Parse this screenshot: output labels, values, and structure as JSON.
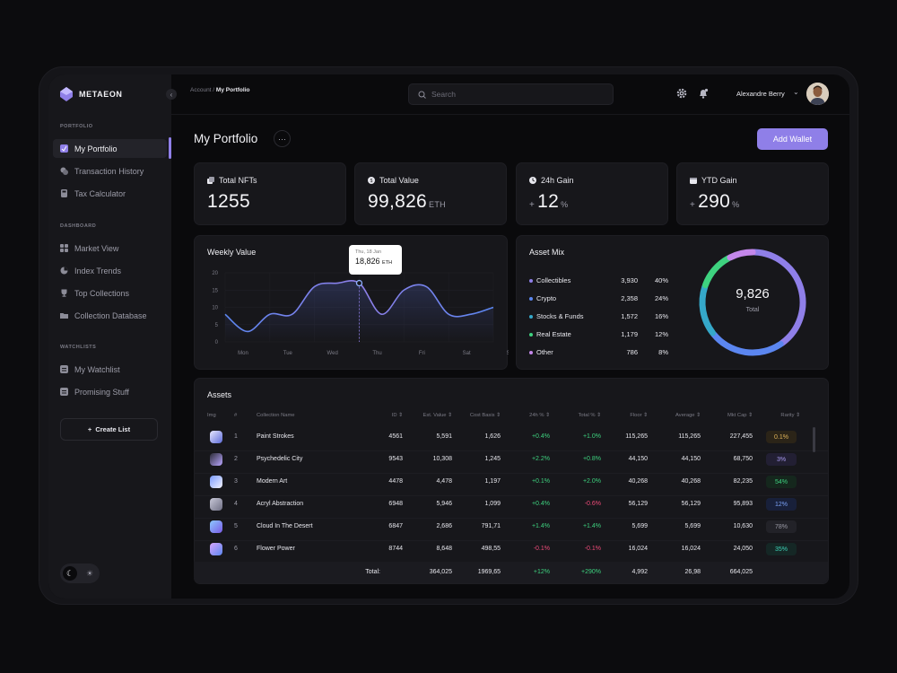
{
  "brand": {
    "name": "METAEON"
  },
  "sidebar": {
    "portfolio_label": "PORTFOLIO",
    "dashboard_label": "DASHBOARD",
    "watchlists_label": "WATCHLISTS",
    "portfolio_items": [
      "My Portfolio",
      "Transaction History",
      "Tax Calculator"
    ],
    "dashboard_items": [
      "Market View",
      "Index Trends",
      "Top Collections",
      "Collection Database"
    ],
    "watchlist_items": [
      "My Watchlist",
      "Promising Stuff"
    ],
    "create_list": "Create List"
  },
  "topbar": {
    "breadcrumb_root": "Account /",
    "breadcrumb_current": "My Portfolio",
    "search_placeholder": "Search",
    "user_name": "Alexandre Berry"
  },
  "header": {
    "title": "My Portfolio",
    "more": "···",
    "add_wallet": "Add Wallet"
  },
  "stats": [
    {
      "label": "Total NFTs",
      "prefix": "",
      "value": "1255",
      "unit": ""
    },
    {
      "label": "Total Value",
      "prefix": "",
      "value": "99,826",
      "unit": "ETH"
    },
    {
      "label": "24h Gain",
      "prefix": "+",
      "value": "12",
      "unit": "%"
    },
    {
      "label": "YTD Gain",
      "prefix": "+",
      "value": "290",
      "unit": "%"
    }
  ],
  "weekly": {
    "title": "Weekly Value",
    "tooltip_date": "Thu, 18 Jan",
    "tooltip_value": "18,826",
    "tooltip_unit": "ETH"
  },
  "chart_data": {
    "type": "line",
    "title": "Weekly Value",
    "categories": [
      "Mon",
      "Tue",
      "Wed",
      "Thu",
      "Fri",
      "Sat",
      "Sun"
    ],
    "x": [
      0,
      0.5,
      1,
      1.5,
      2,
      2.5,
      3,
      3.5,
      4,
      4.5,
      5,
      5.5,
      6
    ],
    "values": [
      8,
      3,
      8,
      8,
      16,
      17,
      17,
      8,
      15,
      16,
      8,
      8,
      10
    ],
    "ylim": [
      0,
      20
    ],
    "yticks": [
      0,
      5,
      10,
      15,
      20
    ],
    "grid": true
  },
  "mix": {
    "title": "Asset Mix",
    "total": "9,826",
    "total_label": "Total",
    "items": [
      {
        "name": "Collectibles",
        "value": "3,930",
        "pct": "40%",
        "share": 40,
        "color": "#8f7fe8"
      },
      {
        "name": "Crypto",
        "value": "2,358",
        "pct": "24%",
        "share": 24,
        "color": "#5b86f0"
      },
      {
        "name": "Stocks & Funds",
        "value": "1,572",
        "pct": "16%",
        "share": 16,
        "color": "#35a8c9"
      },
      {
        "name": "Real Estate",
        "value": "1,179",
        "pct": "12%",
        "share": 12,
        "color": "#3ed27f"
      },
      {
        "name": "Other",
        "value": "786",
        "pct": "8%",
        "share": 8,
        "color": "#c487ea"
      }
    ]
  },
  "assets": {
    "title": "Assets",
    "headers": [
      "Img",
      "#",
      "Collection Name",
      "ID ⇕",
      "Est. Value ⇕",
      "Cost Basis ⇕",
      "24h % ⇕",
      "Total % ⇕",
      "Floor ⇕",
      "Average ⇕",
      "Mkt Cap ⇕",
      "Rarity ⇕"
    ],
    "rows": [
      {
        "n": "1",
        "name": "Paint Strokes",
        "id": "4561",
        "est": "5,591",
        "cost": "1,626",
        "d24": "+0.4%",
        "tot": "+1.0%",
        "floor": "115,265",
        "avg": "115,265",
        "cap": "227,455",
        "rarity": "0.1%",
        "rc": "#e0b45a",
        "rbg": "#2b2418"
      },
      {
        "n": "2",
        "name": "Psychedelic City",
        "id": "9543",
        "est": "10,308",
        "cost": "1,245",
        "d24": "+2.2%",
        "tot": "+0.8%",
        "floor": "44,150",
        "avg": "44,150",
        "cap": "68,750",
        "rarity": "3%",
        "rc": "#a89af0",
        "rbg": "#221f33"
      },
      {
        "n": "3",
        "name": "Modern Art",
        "id": "4478",
        "est": "4,478",
        "cost": "1,197",
        "d24": "+0.1%",
        "tot": "+2.0%",
        "floor": "40,268",
        "avg": "40,268",
        "cap": "82,235",
        "rarity": "54%",
        "rc": "#3ed27f",
        "rbg": "#15271d"
      },
      {
        "n": "4",
        "name": "Acryl Abstraction",
        "id": "6948",
        "est": "5,946",
        "cost": "1,099",
        "d24": "+0.4%",
        "tot": "-0.6%",
        "floor": "56,129",
        "avg": "56,129",
        "cap": "95,893",
        "rarity": "12%",
        "rc": "#7aa0f5",
        "rbg": "#18203a"
      },
      {
        "n": "5",
        "name": "Cloud In The Desert",
        "id": "6847",
        "est": "2,686",
        "cost": "791,71",
        "d24": "+1.4%",
        "tot": "+1.4%",
        "floor": "5,699",
        "avg": "5,699",
        "cap": "10,630",
        "rarity": "78%",
        "rc": "#9a9aa6",
        "rbg": "#222228"
      },
      {
        "n": "6",
        "name": "Flower Power",
        "id": "8744",
        "est": "8,648",
        "cost": "498,55",
        "d24": "-0.1%",
        "tot": "-0.1%",
        "floor": "16,024",
        "avg": "16,024",
        "cap": "24,050",
        "rarity": "35%",
        "rc": "#3ed2b7",
        "rbg": "#152725"
      }
    ],
    "total": {
      "label": "Total:",
      "est": "364,025",
      "cost": "1969,65",
      "d24": "+12%",
      "tot": "+290%",
      "floor": "4,992",
      "avg": "26,98",
      "cap": "664,025"
    }
  }
}
